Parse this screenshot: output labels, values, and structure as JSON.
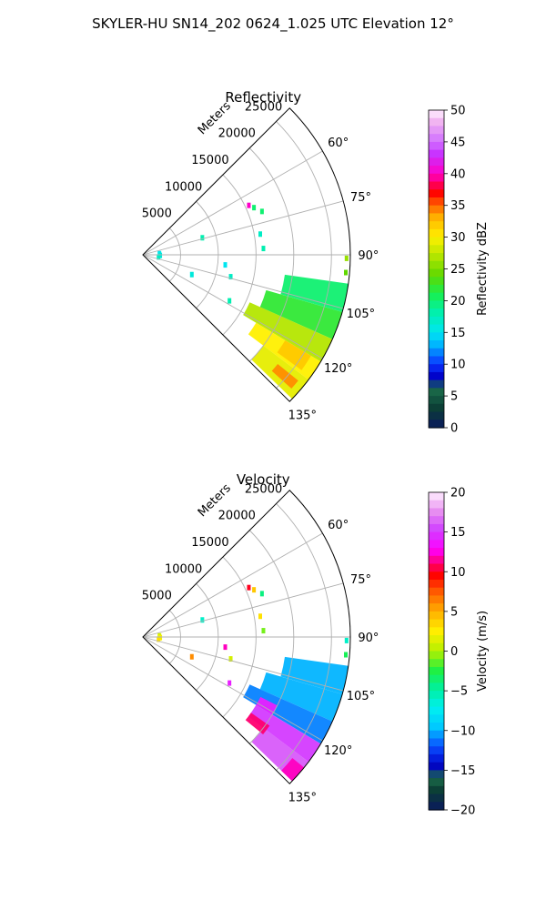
{
  "suptitle": "SKYLER-HU  SN14_202  0624_1.025 UTC Elevation 12°",
  "chart_data": [
    {
      "type": "heatmap",
      "title": "Reflectivity",
      "radial_axis_label": "Meters",
      "radial_ticks": [
        5000,
        10000,
        15000,
        20000,
        25000
      ],
      "radial_ticks_text": [
        "5000",
        "10000",
        "15000",
        "20000",
        "25000"
      ],
      "rlim": [
        0,
        27500
      ],
      "azimuth_range_deg": [
        45,
        135
      ],
      "azimuth_ticks": [
        60,
        75,
        90,
        105,
        120,
        135
      ],
      "azimuth_ticks_text": [
        "60°",
        "75°",
        "90°",
        "105°",
        "120°",
        "135°"
      ],
      "grid": true,
      "colorbar": {
        "label": "Reflectivity dBZ",
        "range": [
          0,
          50
        ],
        "ticks": [
          0,
          5,
          10,
          15,
          20,
          25,
          30,
          35,
          40,
          45,
          50
        ],
        "ticks_text": [
          "0",
          "5",
          "10",
          "15",
          "20",
          "25",
          "30",
          "35",
          "40",
          "45",
          "50"
        ]
      },
      "echo_regions": [
        {
          "az": [
            98,
            106
          ],
          "r": [
            19000,
            27500
          ],
          "value": 20
        },
        {
          "az": [
            106,
            114
          ],
          "r": [
            17000,
            27500
          ],
          "value": 22
        },
        {
          "az": [
            114,
            121
          ],
          "r": [
            15500,
            27500
          ],
          "value": 27
        },
        {
          "az": [
            121,
            127
          ],
          "r": [
            17500,
            27500
          ],
          "value": 30
        },
        {
          "az": [
            127,
            134
          ],
          "r": [
            20000,
            27500
          ],
          "value": 29
        },
        {
          "az": [
            129,
            132
          ],
          "r": [
            23000,
            26500
          ],
          "value": 34
        },
        {
          "az": [
            121,
            126
          ],
          "r": [
            22000,
            26000
          ],
          "value": 32
        }
      ],
      "echo_specks": [
        {
          "az": 65,
          "r": 15500,
          "value": 40
        },
        {
          "az": 67,
          "r": 16000,
          "value": 20
        },
        {
          "az": 70,
          "r": 16800,
          "value": 20
        },
        {
          "az": 74,
          "r": 8200,
          "value": 18
        },
        {
          "az": 80,
          "r": 15800,
          "value": 17
        },
        {
          "az": 87,
          "r": 16000,
          "value": 18
        },
        {
          "az": 91,
          "r": 27000,
          "value": 26
        },
        {
          "az": 95,
          "r": 27000,
          "value": 24
        },
        {
          "az": 97,
          "r": 11000,
          "value": 15
        },
        {
          "az": 104,
          "r": 12000,
          "value": 17
        },
        {
          "az": 112,
          "r": 7000,
          "value": 16
        },
        {
          "az": 118,
          "r": 13000,
          "value": 18
        },
        {
          "az": 86,
          "r": 2200,
          "value": 15
        },
        {
          "az": 92,
          "r": 2300,
          "value": 16
        },
        {
          "az": 98,
          "r": 2100,
          "value": 17
        }
      ]
    },
    {
      "type": "heatmap",
      "title": "Velocity",
      "radial_axis_label": "Meters",
      "radial_ticks": [
        5000,
        10000,
        15000,
        20000,
        25000
      ],
      "radial_ticks_text": [
        "5000",
        "10000",
        "15000",
        "20000",
        "25000"
      ],
      "rlim": [
        0,
        27500
      ],
      "azimuth_range_deg": [
        45,
        135
      ],
      "azimuth_ticks": [
        60,
        75,
        90,
        105,
        120,
        135
      ],
      "azimuth_ticks_text": [
        "60°",
        "75°",
        "90°",
        "105°",
        "120°",
        "135°"
      ],
      "grid": true,
      "colorbar": {
        "label": "Velocity (m/s)",
        "range": [
          -20,
          20
        ],
        "ticks": [
          -20,
          -15,
          -10,
          -5,
          0,
          5,
          10,
          15,
          20
        ],
        "ticks_text": [
          "−20",
          "−15",
          "−10",
          "−5",
          "0",
          "5",
          "10",
          "15",
          "20"
        ]
      },
      "echo_regions": [
        {
          "az": [
            98,
            106
          ],
          "r": [
            19000,
            27500
          ],
          "value": -10
        },
        {
          "az": [
            106,
            114
          ],
          "r": [
            17000,
            27500
          ],
          "value": -10
        },
        {
          "az": [
            114,
            121
          ],
          "r": [
            15500,
            27500
          ],
          "value": -11
        },
        {
          "az": [
            121,
            127
          ],
          "r": [
            17500,
            27500
          ],
          "value": 15
        },
        {
          "az": [
            127,
            134
          ],
          "r": [
            20000,
            27500
          ],
          "value": 16
        },
        {
          "az": [
            125,
            129
          ],
          "r": [
            17500,
            20500
          ],
          "value": 11
        },
        {
          "az": [
            129,
            134
          ],
          "r": [
            25500,
            27500
          ],
          "value": 12
        },
        {
          "az": [
            117,
            121
          ],
          "r": [
            17500,
            20000
          ],
          "value": 14
        }
      ],
      "echo_specks": [
        {
          "az": 65,
          "r": 15500,
          "value": 10
        },
        {
          "az": 67,
          "r": 16000,
          "value": 4
        },
        {
          "az": 70,
          "r": 16800,
          "value": -4
        },
        {
          "az": 74,
          "r": 8200,
          "value": -6
        },
        {
          "az": 80,
          "r": 15800,
          "value": 3
        },
        {
          "az": 87,
          "r": 16000,
          "value": -1
        },
        {
          "az": 91,
          "r": 27000,
          "value": -6
        },
        {
          "az": 95,
          "r": 27000,
          "value": -3
        },
        {
          "az": 97,
          "r": 11000,
          "value": 12
        },
        {
          "az": 104,
          "r": 12000,
          "value": 1
        },
        {
          "az": 112,
          "r": 7000,
          "value": 6
        },
        {
          "az": 118,
          "r": 13000,
          "value": 14
        },
        {
          "az": 86,
          "r": 2200,
          "value": 1
        },
        {
          "az": 92,
          "r": 2300,
          "value": 2
        },
        {
          "az": 98,
          "r": 2100,
          "value": 3
        }
      ]
    }
  ]
}
